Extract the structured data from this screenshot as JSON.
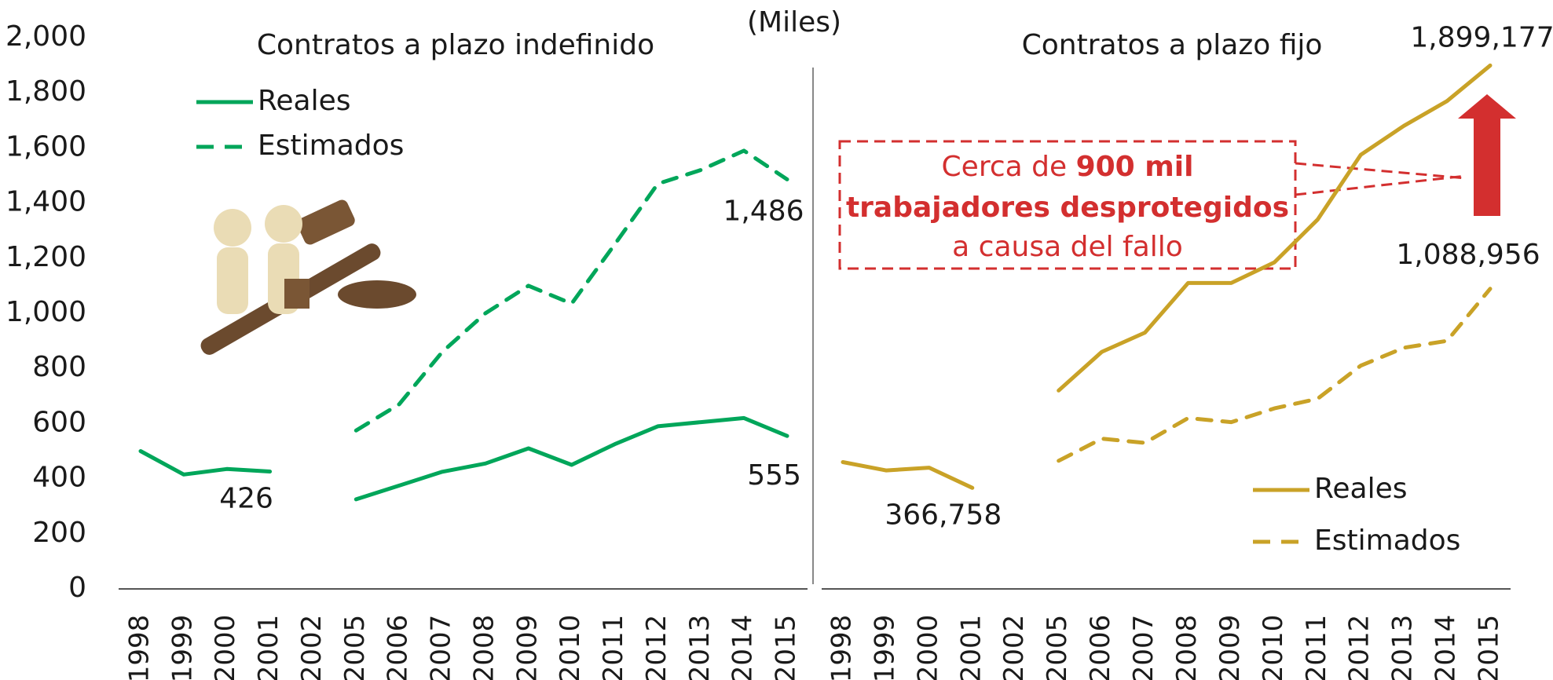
{
  "unit_label": "(Miles)",
  "chart_data": [
    {
      "type": "line",
      "title": "Contratos a plazo indefinido",
      "categories": [
        "1998",
        "1999",
        "2000",
        "2001",
        "2002",
        "2005",
        "2006",
        "2007",
        "2008",
        "2009",
        "2010",
        "2011",
        "2012",
        "2013",
        "2014",
        "2015"
      ],
      "ylim": [
        0,
        2000
      ],
      "yticks": [
        0,
        200,
        400,
        600,
        800,
        {
          "value": 1000,
          "label": "1,000"
        },
        {
          "value": 1200,
          "label": "1,200"
        },
        {
          "value": 1400,
          "label": "1,400"
        },
        {
          "value": 1600,
          "label": "1,600"
        },
        {
          "value": 1800,
          "label": "1,800"
        },
        {
          "value": 2000,
          "label": "2,000"
        }
      ],
      "legend": "top-left",
      "series": [
        {
          "name": "Reales",
          "color": "#00a65a",
          "dash": false,
          "values": [
            500,
            415,
            435,
            426,
            null,
            325,
            375,
            425,
            455,
            510,
            450,
            525,
            590,
            605,
            620,
            555
          ],
          "value_labels": [
            null,
            null,
            null,
            "426",
            null,
            null,
            null,
            null,
            null,
            null,
            null,
            null,
            null,
            null,
            null,
            "555"
          ]
        },
        {
          "name": "Estimados",
          "color": "#00a65a",
          "dash": true,
          "values": [
            null,
            null,
            null,
            null,
            null,
            575,
            670,
            860,
            1000,
            1100,
            1035,
            1250,
            1470,
            1520,
            1590,
            1486
          ],
          "value_labels": [
            null,
            null,
            null,
            null,
            null,
            null,
            null,
            null,
            null,
            null,
            null,
            null,
            null,
            null,
            null,
            "1,486"
          ]
        }
      ]
    },
    {
      "type": "line",
      "title": "Contratos a plazo fijo",
      "categories": [
        "1998",
        "1999",
        "2000",
        "2001",
        "2002",
        "2005",
        "2006",
        "2007",
        "2008",
        "2009",
        "2010",
        "2011",
        "2012",
        "2013",
        "2014",
        "2015"
      ],
      "ylim": [
        0,
        2000
      ],
      "legend": "bottom-right",
      "series": [
        {
          "name": "Reales",
          "color": "#c9a227",
          "dash": false,
          "values": [
            460,
            430,
            440,
            366.758,
            null,
            720,
            860,
            930,
            1110,
            1110,
            1185,
            1340,
            1575,
            1680,
            1770,
            1899.177
          ],
          "value_labels": [
            null,
            null,
            null,
            "366,758",
            null,
            null,
            null,
            null,
            null,
            null,
            null,
            null,
            null,
            null,
            null,
            "1,899,177"
          ]
        },
        {
          "name": "Estimados",
          "color": "#c9a227",
          "dash": true,
          "values": [
            null,
            null,
            null,
            null,
            null,
            465,
            545,
            530,
            620,
            605,
            655,
            690,
            810,
            875,
            900,
            1088.956
          ],
          "value_labels": [
            null,
            null,
            null,
            null,
            null,
            null,
            null,
            null,
            null,
            null,
            null,
            null,
            null,
            null,
            null,
            "1,088,956"
          ]
        }
      ],
      "annotation": {
        "prefix": "Cerca de ",
        "bold1": "900 mil",
        "bold2": "trabajadores desprotegidos",
        "line3": "a causa del fallo"
      }
    }
  ]
}
